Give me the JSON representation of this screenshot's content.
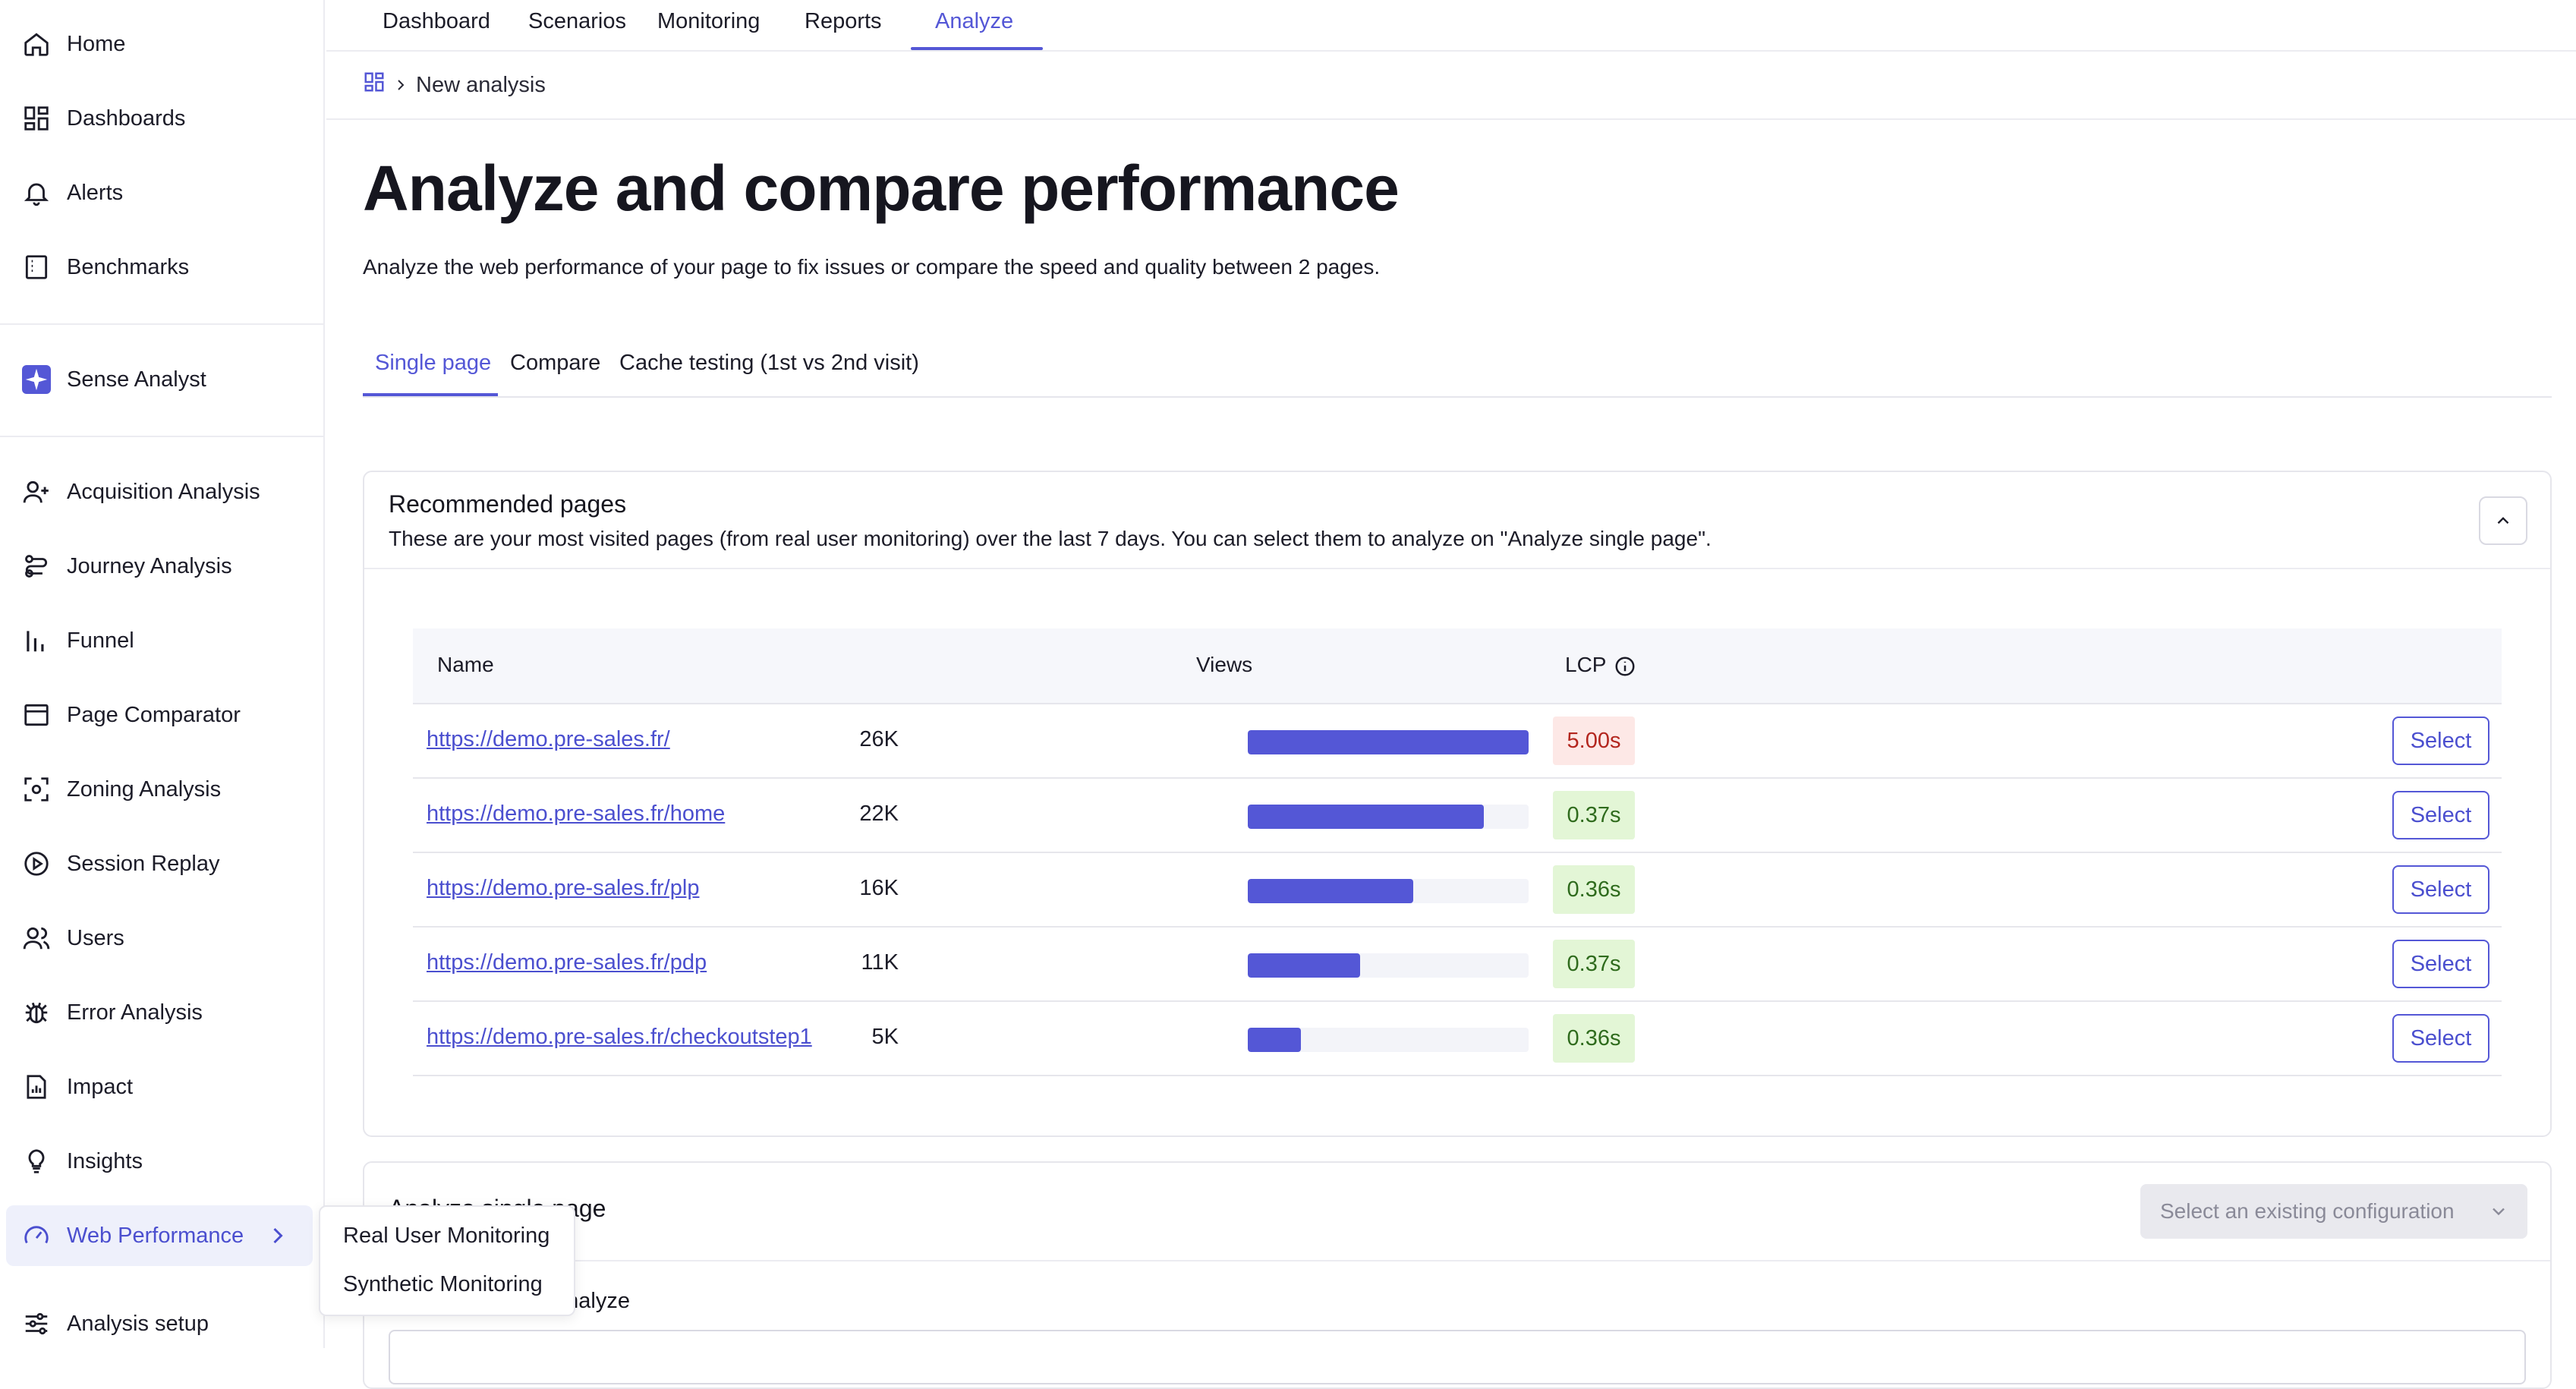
{
  "sidebar": {
    "items": [
      {
        "label": "Home",
        "icon": "home-icon"
      },
      {
        "label": "Dashboards",
        "icon": "dashboard-icon"
      },
      {
        "label": "Alerts",
        "icon": "bell-icon"
      },
      {
        "label": "Benchmarks",
        "icon": "benchmark-icon"
      },
      {
        "label": "Sense Analyst",
        "icon": "sparkle-icon"
      },
      {
        "label": "Acquisition Analysis",
        "icon": "user-plus-icon"
      },
      {
        "label": "Journey Analysis",
        "icon": "journey-icon"
      },
      {
        "label": "Funnel",
        "icon": "funnel-icon"
      },
      {
        "label": "Page Comparator",
        "icon": "page-comparator-icon"
      },
      {
        "label": "Zoning Analysis",
        "icon": "zoning-icon"
      },
      {
        "label": "Session Replay",
        "icon": "play-icon"
      },
      {
        "label": "Users",
        "icon": "users-icon"
      },
      {
        "label": "Error Analysis",
        "icon": "bug-icon"
      },
      {
        "label": "Impact",
        "icon": "impact-icon"
      },
      {
        "label": "Insights",
        "icon": "lightbulb-icon"
      },
      {
        "label": "Web Performance",
        "icon": "gauge-icon"
      },
      {
        "label": "Analysis setup",
        "icon": "sliders-icon"
      }
    ],
    "active": "Web Performance"
  },
  "flyout": {
    "items": [
      "Real User Monitoring",
      "Synthetic Monitoring"
    ]
  },
  "topnav": {
    "tabs": [
      "Dashboard",
      "Scenarios",
      "Monitoring",
      "Reports",
      "Analyze"
    ],
    "active": "Analyze"
  },
  "breadcrumb": {
    "current": "New analysis"
  },
  "page": {
    "title": "Analyze and compare performance",
    "subtitle": "Analyze the web performance of your page to fix issues or compare the speed and quality between 2 pages."
  },
  "tabs": {
    "items": [
      "Single page",
      "Compare",
      "Cache testing (1st vs 2nd visit)"
    ],
    "active": "Single page"
  },
  "recommended": {
    "title": "Recommended pages",
    "description": "These are your most visited pages (from real user monitoring) over the last 7 days. You can select them to analyze on \"Analyze single page\".",
    "columns": {
      "name": "Name",
      "views": "Views",
      "lcp": "LCP"
    },
    "select_label": "Select",
    "rows": [
      {
        "url": "https://demo.pre-sales.fr/",
        "views": "26K",
        "views_fraction": 1.0,
        "lcp": "5.00s",
        "lcp_status": "bad"
      },
      {
        "url": "https://demo.pre-sales.fr/home",
        "views": "22K",
        "views_fraction": 0.84,
        "lcp": "0.37s",
        "lcp_status": "good"
      },
      {
        "url": "https://demo.pre-sales.fr/plp",
        "views": "16K",
        "views_fraction": 0.59,
        "lcp": "0.36s",
        "lcp_status": "good"
      },
      {
        "url": "https://demo.pre-sales.fr/pdp",
        "views": "11K",
        "views_fraction": 0.4,
        "lcp": "0.37s",
        "lcp_status": "good"
      },
      {
        "url": "https://demo.pre-sales.fr/checkoutstep1",
        "views": "5K",
        "views_fraction": 0.19,
        "lcp": "0.36s",
        "lcp_status": "good"
      }
    ]
  },
  "analyze_section": {
    "title": "Analyze single page",
    "config_placeholder": "Select an existing configuration",
    "field_label": "analyze"
  },
  "colors": {
    "accent": "#5457d6",
    "lcp_bad_bg": "#fde8e6",
    "lcp_good_bg": "#e3f6d6"
  }
}
